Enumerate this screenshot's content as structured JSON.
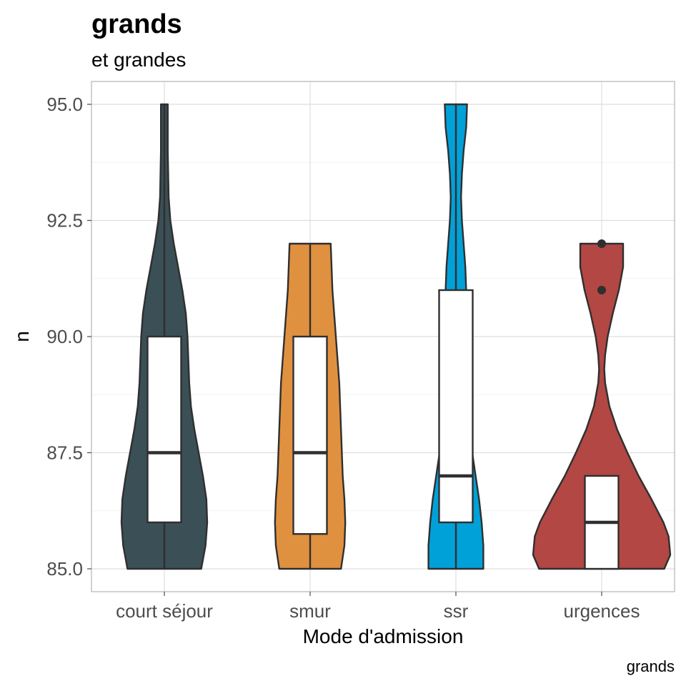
{
  "chart_data": {
    "type": "violin",
    "title": "grands",
    "subtitle": "et grandes",
    "caption": "grands",
    "xlabel": "Mode d'admission",
    "ylabel": "n",
    "ylim": [
      84.5,
      96.0
    ],
    "yticks": [
      "85.0",
      "87.5",
      "90.0",
      "92.5",
      "95.0"
    ],
    "grid": true,
    "legend": "none",
    "categories": [
      "court séjour",
      "smur",
      "ssr",
      "urgences"
    ],
    "colors": [
      "#3b4f56",
      "#e0913f",
      "#00a1d8",
      "#b24744"
    ],
    "violins": [
      {
        "category": "court séjour",
        "box": {
          "q1": 86.0,
          "median": 87.5,
          "q3": 90.0
        },
        "whiskers": [
          85.0,
          95.0
        ],
        "outliers": [],
        "profile": [
          {
            "y": 85.0,
            "w": 0.43
          },
          {
            "y": 85.5,
            "w": 0.48
          },
          {
            "y": 86.0,
            "w": 0.5
          },
          {
            "y": 86.5,
            "w": 0.49
          },
          {
            "y": 87.0,
            "w": 0.45
          },
          {
            "y": 87.5,
            "w": 0.4
          },
          {
            "y": 88.0,
            "w": 0.35
          },
          {
            "y": 88.5,
            "w": 0.31
          },
          {
            "y": 89.0,
            "w": 0.29
          },
          {
            "y": 89.5,
            "w": 0.28
          },
          {
            "y": 90.0,
            "w": 0.27
          },
          {
            "y": 90.5,
            "w": 0.25
          },
          {
            "y": 91.0,
            "w": 0.21
          },
          {
            "y": 91.5,
            "w": 0.16
          },
          {
            "y": 92.0,
            "w": 0.11
          },
          {
            "y": 92.5,
            "w": 0.07
          },
          {
            "y": 93.0,
            "w": 0.05
          },
          {
            "y": 94.0,
            "w": 0.04
          },
          {
            "y": 95.0,
            "w": 0.04
          }
        ]
      },
      {
        "category": "smur",
        "box": {
          "q1": 85.75,
          "median": 87.5,
          "q3": 90.0
        },
        "whiskers": [
          85.0,
          92.0
        ],
        "outliers": [],
        "profile": [
          {
            "y": 85.0,
            "w": 0.36
          },
          {
            "y": 85.5,
            "w": 0.4
          },
          {
            "y": 86.0,
            "w": 0.41
          },
          {
            "y": 86.5,
            "w": 0.4
          },
          {
            "y": 87.0,
            "w": 0.38
          },
          {
            "y": 87.5,
            "w": 0.37
          },
          {
            "y": 88.0,
            "w": 0.36
          },
          {
            "y": 88.5,
            "w": 0.35
          },
          {
            "y": 89.0,
            "w": 0.34
          },
          {
            "y": 89.5,
            "w": 0.32
          },
          {
            "y": 90.0,
            "w": 0.3
          },
          {
            "y": 90.5,
            "w": 0.28
          },
          {
            "y": 91.0,
            "w": 0.26
          },
          {
            "y": 91.5,
            "w": 0.25
          },
          {
            "y": 92.0,
            "w": 0.24
          }
        ]
      },
      {
        "category": "ssr",
        "box": {
          "q1": 86.0,
          "median": 87.0,
          "q3": 91.0
        },
        "whiskers": [
          85.0,
          95.0
        ],
        "outliers": [],
        "profile": [
          {
            "y": 85.0,
            "w": 0.32
          },
          {
            "y": 85.5,
            "w": 0.32
          },
          {
            "y": 86.0,
            "w": 0.3
          },
          {
            "y": 86.5,
            "w": 0.27
          },
          {
            "y": 87.0,
            "w": 0.23
          },
          {
            "y": 87.5,
            "w": 0.19
          },
          {
            "y": 88.0,
            "w": 0.15
          },
          {
            "y": 88.5,
            "w": 0.12
          },
          {
            "y": 89.0,
            "w": 0.1
          },
          {
            "y": 89.5,
            "w": 0.1
          },
          {
            "y": 90.0,
            "w": 0.1
          },
          {
            "y": 90.5,
            "w": 0.11
          },
          {
            "y": 91.0,
            "w": 0.12
          },
          {
            "y": 91.5,
            "w": 0.11
          },
          {
            "y": 92.0,
            "w": 0.09
          },
          {
            "y": 92.5,
            "w": 0.07
          },
          {
            "y": 93.0,
            "w": 0.06
          },
          {
            "y": 93.5,
            "w": 0.07
          },
          {
            "y": 94.0,
            "w": 0.09
          },
          {
            "y": 94.5,
            "w": 0.12
          },
          {
            "y": 95.0,
            "w": 0.13
          }
        ]
      },
      {
        "category": "urgences",
        "box": {
          "q1": 85.0,
          "median": 86.0,
          "q3": 87.0
        },
        "whiskers": [
          85.0,
          87.0
        ],
        "outliers": [
          91.0,
          92.0
        ],
        "profile": [
          {
            "y": 85.0,
            "w": 0.73
          },
          {
            "y": 85.3,
            "w": 0.8
          },
          {
            "y": 85.7,
            "w": 0.78
          },
          {
            "y": 86.0,
            "w": 0.72
          },
          {
            "y": 86.5,
            "w": 0.58
          },
          {
            "y": 87.0,
            "w": 0.43
          },
          {
            "y": 87.5,
            "w": 0.3
          },
          {
            "y": 88.0,
            "w": 0.18
          },
          {
            "y": 88.5,
            "w": 0.09
          },
          {
            "y": 89.0,
            "w": 0.04
          },
          {
            "y": 89.3,
            "w": 0.03
          },
          {
            "y": 89.6,
            "w": 0.04
          },
          {
            "y": 90.0,
            "w": 0.07
          },
          {
            "y": 90.5,
            "w": 0.13
          },
          {
            "y": 91.0,
            "w": 0.2
          },
          {
            "y": 91.5,
            "w": 0.25
          },
          {
            "y": 92.0,
            "w": 0.25
          }
        ]
      }
    ]
  }
}
